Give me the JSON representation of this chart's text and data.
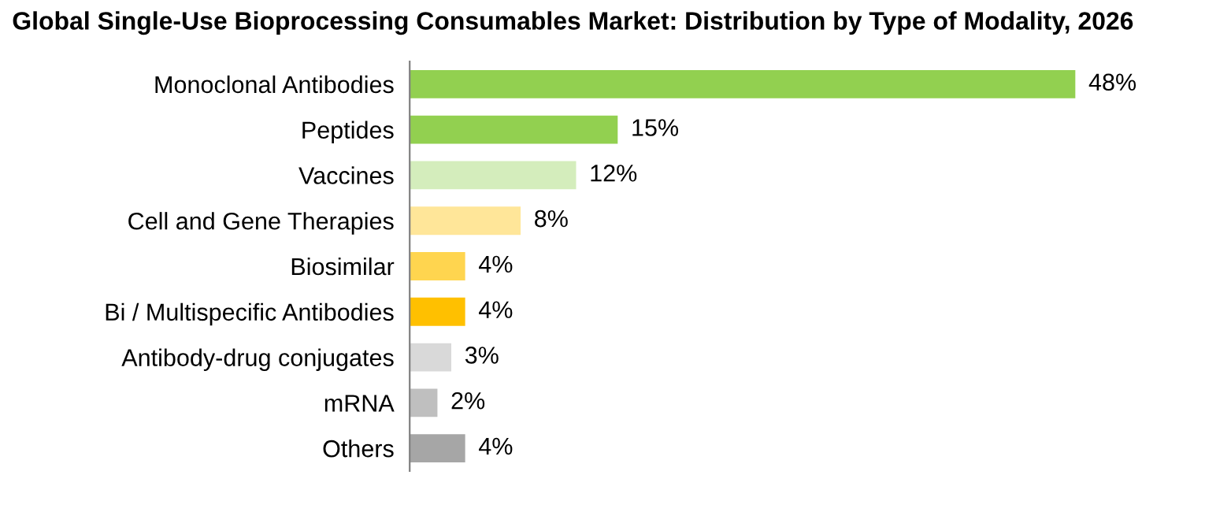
{
  "chart_data": {
    "type": "bar",
    "orientation": "horizontal",
    "title": "Global Single-Use Bioprocessing Consumables Market: Distribution by Type of Modality, 2026",
    "categories": [
      "Monoclonal Antibodies",
      "Peptides",
      "Vaccines",
      "Cell and Gene Therapies",
      "Biosimilar",
      "Bi / Multispecific Antibodies",
      "Antibody-drug conjugates",
      "mRNA",
      "Others"
    ],
    "values": [
      48,
      15,
      12,
      8,
      4,
      4,
      3,
      2,
      4
    ],
    "value_labels": [
      "48%",
      "15%",
      "12%",
      "8%",
      "4%",
      "4%",
      "3%",
      "2%",
      "4%"
    ],
    "colors": [
      "#92d050",
      "#92d050",
      "#d4edbc",
      "#ffe699",
      "#ffd54f",
      "#ffc000",
      "#d9d9d9",
      "#bfbfbf",
      "#a6a6a6"
    ],
    "tick_labels": "y",
    "grid": false,
    "legend": false
  }
}
